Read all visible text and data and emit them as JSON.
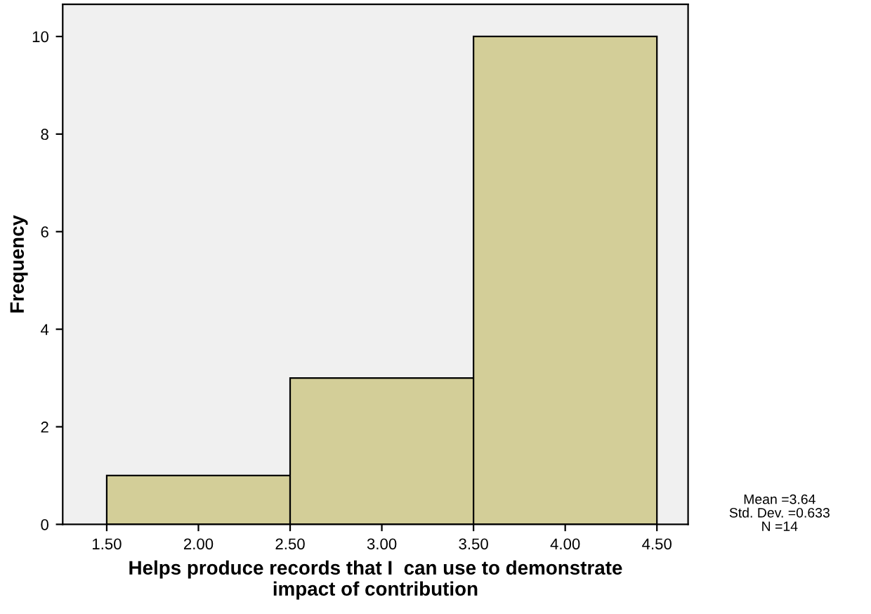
{
  "chart_data": {
    "type": "histogram",
    "bins": [
      1.5,
      2.5,
      3.5,
      4.5
    ],
    "values": [
      1,
      3,
      10
    ],
    "color": "#d3ce98",
    "xlabel": "Helps produce records that I  can use to demonstrate\nimpact of contribution",
    "ylabel": "Frequency",
    "xlim": [
      1.26,
      4.67
    ],
    "ylim": [
      0,
      10.66
    ],
    "xticks": [
      {
        "value": 1.5,
        "label": "1.50"
      },
      {
        "value": 2.0,
        "label": "2.00"
      },
      {
        "value": 2.5,
        "label": "2.50"
      },
      {
        "value": 3.0,
        "label": "3.00"
      },
      {
        "value": 3.5,
        "label": "3.50"
      },
      {
        "value": 4.0,
        "label": "4.00"
      },
      {
        "value": 4.5,
        "label": "4.50"
      }
    ],
    "yticks": [
      0,
      2,
      4,
      6,
      8,
      10
    ],
    "grid": false,
    "annotations": [
      "Mean =3.64",
      "Std. Dev. =0.633",
      "N =14"
    ]
  }
}
